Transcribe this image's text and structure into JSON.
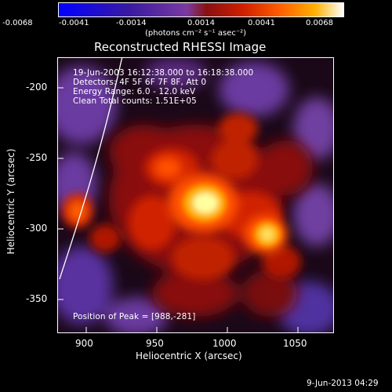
{
  "colorbar": {
    "tick_labels": [
      "-0.0068",
      "-0.0041",
      "-0.0014",
      "0.0014",
      "0.0041",
      "0.0068"
    ],
    "unit_label": "(photons cm⁻² s⁻¹ asec⁻²)"
  },
  "image": {
    "title": "Reconstructed RHESSI Image",
    "time_range": "19-Jun-2003 16:12:38.000 to 16:18:38.000",
    "detectors": "Detectors: 4F 5F 6F 7F 8F, Att 0",
    "energy_range": "Energy Range: 6.0 - 12.0 keV",
    "clean_info": "Clean    Total counts: 1.51E+05",
    "peak_position": "Position of Peak = [988,-281]"
  },
  "axes": {
    "x_label": "Heliocentric X (arcsec)",
    "y_label": "Heliocentric Y (arcsec)",
    "x_ticks": [
      "900",
      "950",
      "1000",
      "1050"
    ],
    "y_ticks": [
      "-200",
      "-250",
      "-300",
      "-350"
    ]
  },
  "footer": {
    "date": "9-Jun-2013 04:29"
  },
  "colors": {
    "background": "#000000",
    "foreground": "#ffffff",
    "colormap": [
      "#0000ff",
      "#3a1aa0",
      "#7a3aa0",
      "#8a1010",
      "#d02000",
      "#ff6000",
      "#ffb000",
      "#ffffff"
    ]
  }
}
